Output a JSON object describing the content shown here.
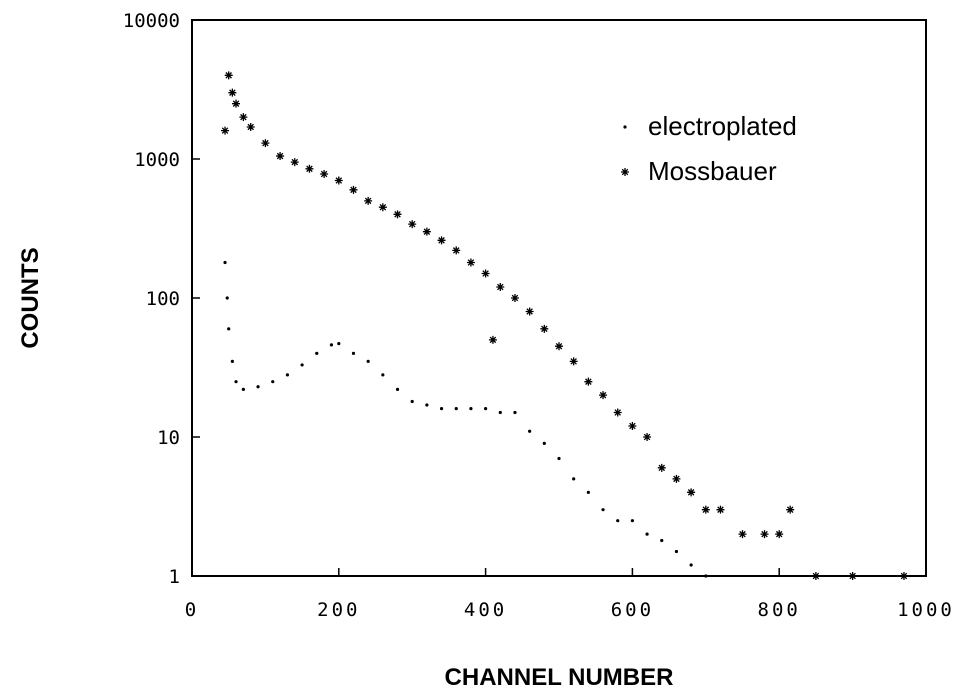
{
  "chart_data": {
    "type": "scatter",
    "xlabel": "CHANNEL NUMBER",
    "ylabel": "COUNTS",
    "xlim": [
      0,
      1000
    ],
    "xticks": [
      0,
      200,
      400,
      600,
      800,
      1000
    ],
    "ylim": [
      1,
      10000
    ],
    "yticks": [
      1,
      10,
      100,
      1000,
      10000
    ],
    "yscale": "log",
    "legend": "upper right",
    "series": [
      {
        "name": "electroplated",
        "color": "#000000",
        "marker": "dot",
        "x": [
          45,
          48,
          50,
          55,
          60,
          70,
          90,
          110,
          130,
          150,
          170,
          190,
          200,
          220,
          240,
          260,
          280,
          300,
          320,
          340,
          360,
          380,
          400,
          420,
          440,
          460,
          480,
          500,
          520,
          540,
          560,
          580,
          600,
          620,
          640,
          660,
          680,
          700
        ],
        "values": [
          180,
          100,
          60,
          35,
          25,
          22,
          23,
          25,
          28,
          33,
          40,
          46,
          47,
          40,
          35,
          28,
          22,
          18,
          17,
          16,
          16,
          16,
          16,
          15,
          15,
          11,
          9,
          7,
          5,
          4,
          3,
          2.5,
          2.5,
          2,
          1.8,
          1.5,
          1.2,
          1
        ]
      },
      {
        "name": "Mossbauer",
        "color": "#000000",
        "marker": "star",
        "x": [
          45,
          50,
          55,
          60,
          70,
          80,
          100,
          120,
          140,
          160,
          180,
          200,
          220,
          240,
          260,
          280,
          300,
          320,
          340,
          360,
          380,
          400,
          410,
          420,
          440,
          460,
          480,
          500,
          520,
          540,
          560,
          580,
          600,
          620,
          640,
          660,
          680,
          700,
          720,
          750,
          780,
          800,
          815,
          850,
          900,
          970
        ],
        "values": [
          1600,
          4000,
          3000,
          2500,
          2000,
          1700,
          1300,
          1050,
          950,
          850,
          780,
          700,
          600,
          500,
          450,
          400,
          340,
          300,
          260,
          220,
          180,
          150,
          50,
          120,
          100,
          80,
          60,
          45,
          35,
          25,
          20,
          15,
          12,
          10,
          6,
          5,
          4,
          3,
          3,
          2,
          2,
          2,
          3,
          1,
          1,
          1
        ]
      }
    ]
  }
}
